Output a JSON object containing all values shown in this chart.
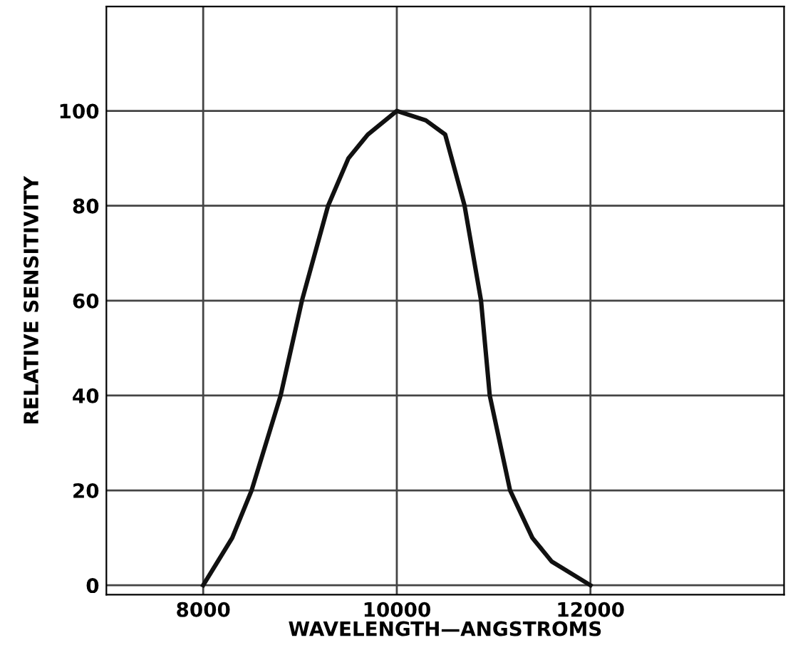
{
  "chart_data": {
    "type": "line",
    "xlabel": "WAVELENGTH—ANGSTROMS",
    "ylabel": "RELATIVE SENSITIVITY",
    "x": [
      8000,
      8150,
      8300,
      8500,
      8800,
      9020,
      9290,
      9500,
      9700,
      10000,
      10300,
      10500,
      10700,
      10870,
      10960,
      11170,
      11400,
      11600,
      12000
    ],
    "series": [
      {
        "color": "#111111",
        "values": [
          0,
          5,
          10,
          20,
          40,
          60,
          80,
          90,
          95,
          100,
          98,
          95,
          80,
          60,
          40,
          20,
          10,
          5,
          0
        ]
      }
    ],
    "xlim": [
      7000,
      14000
    ],
    "ylim": [
      -2,
      122
    ],
    "xticks": [
      8000,
      10000,
      12000
    ],
    "yticks": [
      0,
      20,
      40,
      60,
      80,
      100
    ],
    "grid": true
  }
}
